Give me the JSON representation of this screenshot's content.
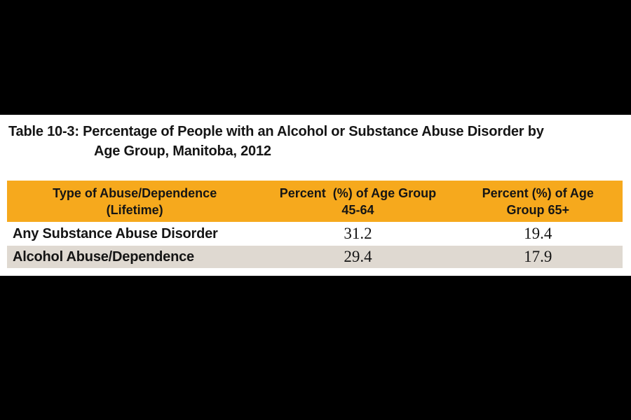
{
  "page": {
    "caption_line1": "Table 10-3: Percentage of People with an Alcohol or Substance Abuse Disorder by",
    "caption_line2": "Age Group, Manitoba, 2012"
  },
  "colors": {
    "canvas_bg": "#000000",
    "content_bg": "#FFFFFF",
    "header_bg": "#F6A91D",
    "row_alt_bg": "#DFD9D1",
    "text": "#151515"
  },
  "table": {
    "columns": [
      {
        "line1": "Type of Abuse/Dependence",
        "line2": "(Lifetime)"
      },
      {
        "line1": "Percent  (%) of Age Group",
        "line2": "45-64"
      },
      {
        "line1": "Percent (%) of Age",
        "line2": "Group 65+"
      }
    ],
    "rows": [
      {
        "label": "Any Substance Abuse Disorder",
        "pct_45_64": "31.2",
        "pct_65_plus": "19.4"
      },
      {
        "label": "Alcohol Abuse/Dependence",
        "pct_45_64": "29.4",
        "pct_65_plus": "17.9"
      }
    ]
  },
  "chart_data": {
    "type": "table",
    "title": "Table 10-3: Percentage of People with an Alcohol or Substance Abuse Disorder by Age Group, Manitoba, 2012",
    "columns": [
      "Type of Abuse/Dependence (Lifetime)",
      "Percent (%) of Age Group 45-64",
      "Percent (%) of Age Group 65+"
    ],
    "rows": [
      [
        "Any Substance Abuse Disorder",
        31.2,
        19.4
      ],
      [
        "Alcohol Abuse/Dependence",
        29.4,
        17.9
      ]
    ]
  }
}
